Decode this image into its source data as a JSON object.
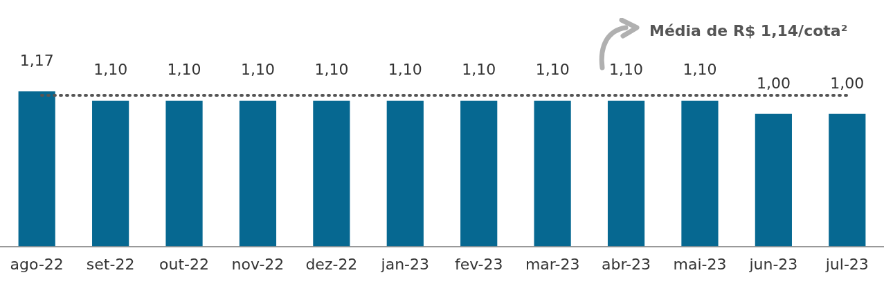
{
  "chart_data": {
    "type": "bar",
    "categories": [
      "ago-22",
      "set-22",
      "out-22",
      "nov-22",
      "dez-22",
      "jan-23",
      "fev-23",
      "mar-23",
      "abr-23",
      "mai-23",
      "jun-23",
      "jul-23"
    ],
    "values": [
      1.17,
      1.1,
      1.1,
      1.1,
      1.1,
      1.1,
      1.1,
      1.1,
      1.1,
      1.1,
      1.0,
      1.0
    ],
    "value_labels": [
      "1,17",
      "1,10",
      "1,10",
      "1,10",
      "1,10",
      "1,10",
      "1,10",
      "1,10",
      "1,10",
      "1,10",
      "1,00",
      "1,00"
    ],
    "color": "#066891",
    "ref_lines": [
      {
        "axis": "y",
        "value": 1.14,
        "label": "Média de R$ 1,14/cota²",
        "color": "#555555",
        "line_style": "dotted"
      }
    ],
    "grid": false,
    "legend": false
  }
}
